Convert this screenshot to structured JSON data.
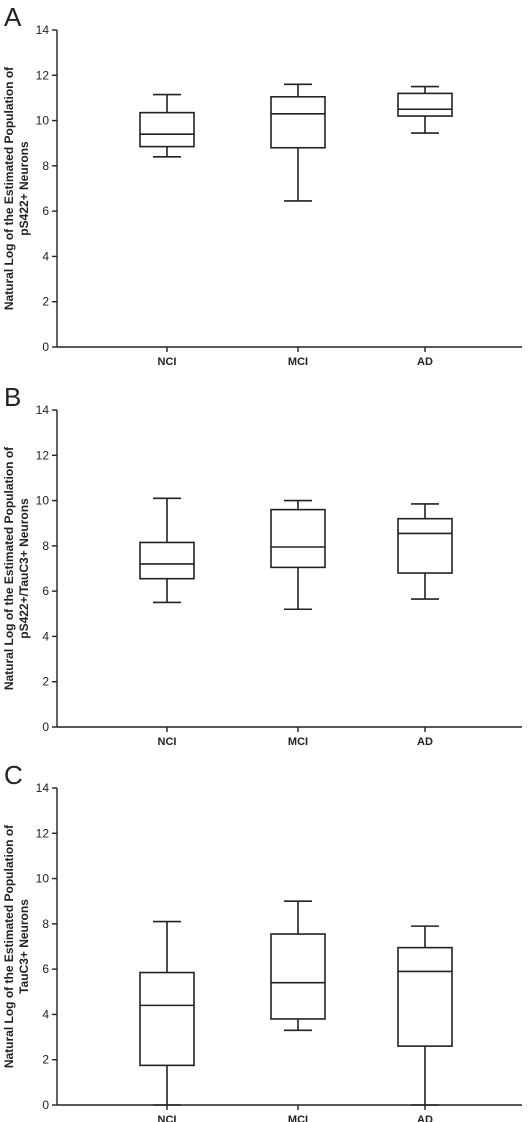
{
  "chart_data": [
    {
      "type": "boxplot",
      "panel_label": "A",
      "ylabel_lines": [
        "Natural Log of the Estimated Population of",
        "pS422+ Neurons"
      ],
      "ylim": [
        0,
        14
      ],
      "yticks": [
        0,
        2,
        4,
        6,
        8,
        10,
        12,
        14
      ],
      "categories": [
        "NCI",
        "MCI",
        "AD"
      ],
      "boxes": [
        {
          "category": "NCI",
          "min": 8.4,
          "q1": 8.85,
          "median": 9.4,
          "q3": 10.35,
          "max": 11.15
        },
        {
          "category": "MCI",
          "min": 6.45,
          "q1": 8.8,
          "median": 10.3,
          "q3": 11.05,
          "max": 11.6
        },
        {
          "category": "AD",
          "min": 9.45,
          "q1": 10.2,
          "median": 10.5,
          "q3": 11.2,
          "max": 11.5
        }
      ]
    },
    {
      "type": "boxplot",
      "panel_label": "B",
      "ylabel_lines": [
        "Natural Log of the Estimated Population of",
        "pS422+/TauC3+ Neurons"
      ],
      "ylim": [
        0,
        14
      ],
      "yticks": [
        0,
        2,
        4,
        6,
        8,
        10,
        12,
        14
      ],
      "categories": [
        "NCI",
        "MCI",
        "AD"
      ],
      "boxes": [
        {
          "category": "NCI",
          "min": 5.5,
          "q1": 6.55,
          "median": 7.2,
          "q3": 8.15,
          "max": 10.1
        },
        {
          "category": "MCI",
          "min": 5.2,
          "q1": 7.05,
          "median": 7.95,
          "q3": 9.6,
          "max": 10.0
        },
        {
          "category": "AD",
          "min": 5.65,
          "q1": 6.8,
          "median": 8.55,
          "q3": 9.2,
          "max": 9.85
        }
      ]
    },
    {
      "type": "boxplot",
      "panel_label": "C",
      "ylabel_lines": [
        "Natural Log of the Estimated Population of",
        "TauC3+ Neurons"
      ],
      "ylim": [
        0,
        14
      ],
      "yticks": [
        0,
        2,
        4,
        6,
        8,
        10,
        12,
        14
      ],
      "categories": [
        "NCI",
        "MCI",
        "AD"
      ],
      "boxes": [
        {
          "category": "NCI",
          "min": 0.0,
          "q1": 1.75,
          "median": 4.4,
          "q3": 5.85,
          "max": 8.1
        },
        {
          "category": "MCI",
          "min": 3.3,
          "q1": 3.8,
          "median": 5.4,
          "q3": 7.55,
          "max": 9.0
        },
        {
          "category": "AD",
          "min": 0.0,
          "q1": 2.6,
          "median": 5.9,
          "q3": 6.95,
          "max": 7.9
        }
      ]
    }
  ]
}
